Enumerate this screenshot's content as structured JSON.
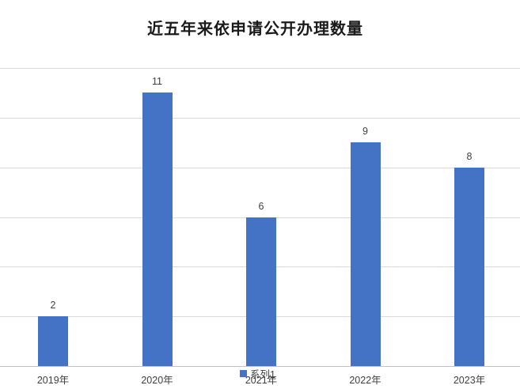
{
  "chart_data": {
    "type": "bar",
    "title": "近五年来依申请公开办理数量",
    "categories": [
      "2019年",
      "2020年",
      "2021年",
      "2022年",
      "2023年"
    ],
    "values": [
      2,
      11,
      6,
      9,
      8
    ],
    "series": [
      {
        "name": "系列1",
        "values": [
          2,
          11,
          6,
          9,
          8
        ]
      }
    ],
    "legend_label": "系列1",
    "legend_position": "bottom-center",
    "xlabel": "",
    "ylabel": "",
    "ylim": [
      0,
      12
    ],
    "y_major_unit": 2,
    "y_axis_labels_visible": false,
    "grid": "horizontal",
    "data_labels": [
      2,
      11,
      6,
      9,
      8
    ],
    "colors": {
      "bar": "#4472C4",
      "gridline": "#D9D9D9",
      "axis_line": "#C3C3C3",
      "label_text": "#404040",
      "title_text": "#1A1A1A",
      "background": "#FFFFFF"
    }
  }
}
